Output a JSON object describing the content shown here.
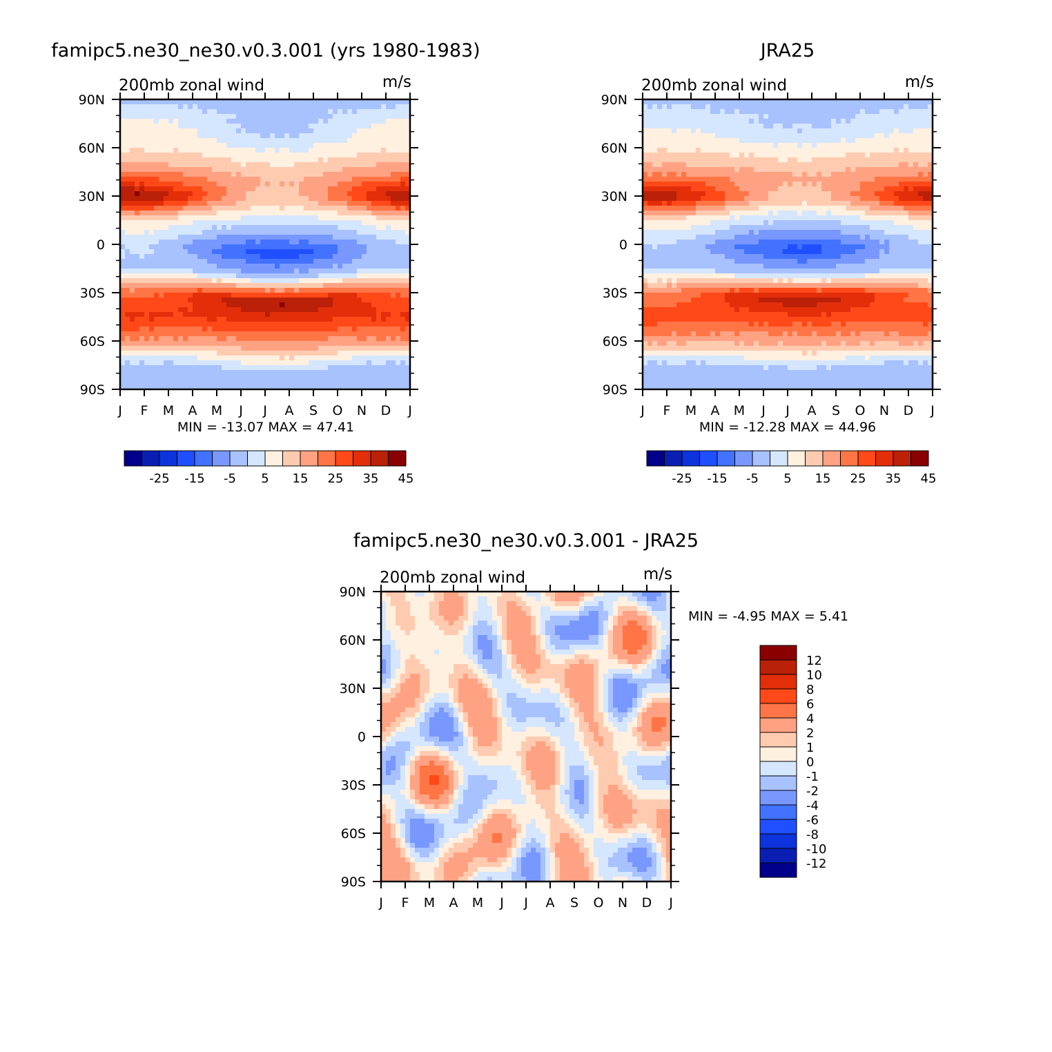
{
  "colors": {
    "full": [
      "#00008b",
      "#0a1fb2",
      "#0d33dd",
      "#1f4fff",
      "#4272ff",
      "#7898ff",
      "#a8c1ff",
      "#d5e6ff",
      "#fff0e0",
      "#ffcbb0",
      "#ffa283",
      "#ff7545",
      "#ff4918",
      "#e32e0a",
      "#bb2008",
      "#8a0000"
    ],
    "diff": [
      "#00008b",
      "#0a1fb2",
      "#0d33dd",
      "#1f4fff",
      "#4272ff",
      "#7898ff",
      "#a8c1ff",
      "#d5e6ff",
      "#fff0e0",
      "#ffcbb0",
      "#ffa283",
      "#ff7545",
      "#ff4918",
      "#e32e0a",
      "#bb2008",
      "#8a0000"
    ]
  },
  "chart_data": [
    {
      "type": "heatmap",
      "title": "famipc5.ne30_ne30.v0.3.001 (yrs 1980-1983)",
      "left_label": "200mb zonal wind",
      "right_label": "m/s",
      "x_ticks": [
        "J",
        "F",
        "M",
        "A",
        "M",
        "J",
        "J",
        "A",
        "S",
        "O",
        "N",
        "D",
        "J"
      ],
      "y_ticks": [
        "90N",
        "60N",
        "30N",
        "0",
        "30S",
        "60S",
        "90S"
      ],
      "stats": "MIN = -13.07 MAX =  47.41",
      "levels": [
        -30,
        -25,
        -20,
        -15,
        -10,
        -5,
        0,
        5,
        10,
        15,
        20,
        25,
        30,
        35,
        40,
        45
      ],
      "colorbar_labels": [
        "-25",
        "-15",
        "-5",
        "5",
        "15",
        "25",
        "35",
        "45"
      ],
      "profile": {
        "lat": [
          90,
          75,
          60,
          45,
          30,
          15,
          0,
          -15,
          -30,
          -45,
          -60,
          -75,
          -90
        ],
        "winter": [
          3,
          12,
          14,
          24,
          47,
          15,
          6,
          4,
          28,
          36,
          24,
          3,
          1
        ],
        "summer": [
          3,
          4,
          12,
          20,
          16,
          2,
          -13,
          4,
          46,
          33,
          20,
          3,
          1
        ]
      }
    },
    {
      "type": "heatmap",
      "title": "JRA25",
      "left_label": "200mb zonal wind",
      "right_label": "m/s",
      "x_ticks": [
        "J",
        "F",
        "M",
        "A",
        "M",
        "J",
        "J",
        "A",
        "S",
        "O",
        "N",
        "D",
        "J"
      ],
      "y_ticks": [
        "90N",
        "60N",
        "30N",
        "0",
        "30S",
        "60S",
        "90S"
      ],
      "stats": "MIN = -12.28 MAX =  44.96",
      "levels": [
        -30,
        -25,
        -20,
        -15,
        -10,
        -5,
        0,
        5,
        10,
        15,
        20,
        25,
        30,
        35,
        40,
        45
      ],
      "colorbar_labels": [
        "-25",
        "-15",
        "-5",
        "5",
        "15",
        "25",
        "35",
        "45"
      ],
      "profile": {
        "lat": [
          90,
          75,
          60,
          45,
          30,
          15,
          0,
          -15,
          -30,
          -45,
          -60,
          -75,
          -90
        ],
        "winter": [
          3,
          9,
          14,
          23,
          44,
          14,
          5,
          4,
          26,
          33,
          22,
          3,
          1
        ],
        "summer": [
          3,
          5,
          13,
          21,
          16,
          2,
          -12,
          4,
          44,
          31,
          19,
          3,
          1
        ]
      }
    },
    {
      "type": "heatmap",
      "title": "famipc5.ne30_ne30.v0.3.001 - JRA25",
      "left_label": "200mb zonal wind",
      "right_label": "m/s",
      "x_ticks": [
        "J",
        "F",
        "M",
        "A",
        "M",
        "J",
        "J",
        "A",
        "S",
        "O",
        "N",
        "D",
        "J"
      ],
      "y_ticks": [
        "90N",
        "60N",
        "30N",
        "0",
        "30S",
        "60S",
        "90S"
      ],
      "stats": "MIN =  -4.95 MAX =   5.41",
      "levels": [
        -14,
        -12,
        -10,
        -8,
        -6,
        -4,
        -2,
        -1,
        0,
        1,
        2,
        4,
        6,
        8,
        10,
        12
      ],
      "colorbar_labels": [
        "12",
        "10",
        "8",
        "6",
        "4",
        "2",
        "1",
        "0",
        "-1",
        "-2",
        "-4",
        "-6",
        "-8",
        "-10",
        "-12"
      ]
    }
  ]
}
